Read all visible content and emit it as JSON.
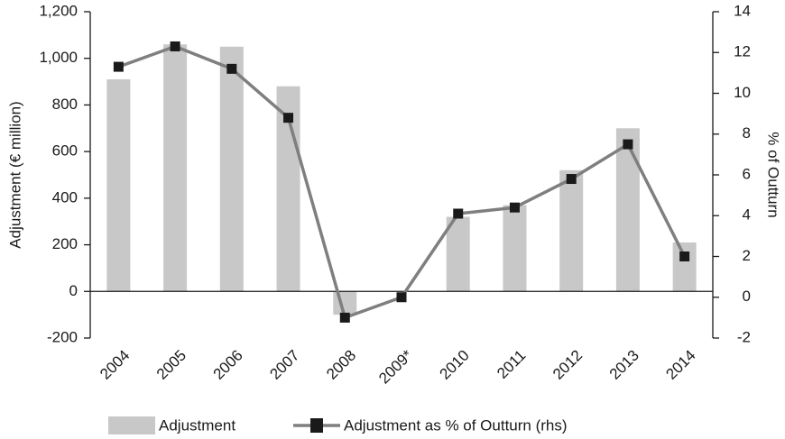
{
  "chart_data": {
    "type": "combo",
    "categories": [
      "2004",
      "2005",
      "2006",
      "2007",
      "2008",
      "2009*",
      "2010",
      "2011",
      "2012",
      "2013",
      "2014"
    ],
    "series": [
      {
        "name": "Adjustment",
        "type": "bar",
        "color": "#c8c8c8",
        "values": [
          910,
          1060,
          1050,
          880,
          -100,
          0,
          320,
          370,
          520,
          700,
          210
        ]
      },
      {
        "name": "Adjustment as % of Outturn (rhs)",
        "type": "line",
        "axis": "y2",
        "color": "#7f7f7f",
        "marker_color": "#1a1a1a",
        "values": [
          11.3,
          12.3,
          11.2,
          8.8,
          -1.0,
          0,
          4.1,
          4.4,
          5.8,
          7.5,
          2.0
        ]
      }
    ],
    "y_label": "Adjustment (€ million)",
    "y2_label": "% of Outturn",
    "ylim": [
      -200,
      1200
    ],
    "yticks": [
      -200,
      0,
      200,
      400,
      600,
      800,
      {
        "value": 1000,
        "label": "1,000"
      },
      {
        "value": 1200,
        "label": "1,200"
      }
    ],
    "y2lim": [
      -2,
      14
    ],
    "y2ticks": [
      -2,
      0,
      2,
      4,
      6,
      8,
      10,
      12,
      14
    ],
    "grid": false
  }
}
